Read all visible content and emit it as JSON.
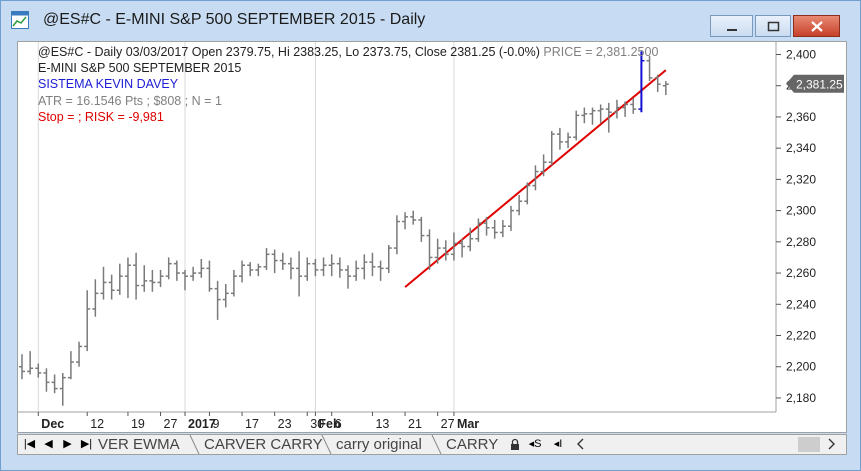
{
  "window": {
    "title": "@ES#C - E-MINI S&P 500 SEPTEMBER 2015 - Daily",
    "accent": "#c7dcf2",
    "close_color": "#c7402a"
  },
  "icons": {
    "app": "chart-app-icon",
    "minimize": "minimize-icon",
    "maximize": "maximize-icon",
    "close": "close-icon"
  },
  "header": {
    "line1_prefix": "@ES#C - Daily 03/03/2017 Open 2379.75, Hi 2383.25, Lo 2373.75, Close 2381.25 (-0.0%) ",
    "line1_price": "PRICE = 2,381.2500",
    "line2": "E-MINI S&P 500 SEPTEMBER 2015",
    "line3": "SISTEMA KEVIN DAVEY",
    "line4": "ATR = 16.1546 Pts ; $808 ; N = 1",
    "line5": "Stop =  ; RISK = -9,981",
    "colors": {
      "line1": "#222222",
      "price": "#808080",
      "line2": "#222222",
      "line3": "#1d1dd6",
      "line4": "#808080",
      "line5": "#e00000"
    }
  },
  "chart_data": {
    "type": "ohlc",
    "symbol": "@ES#C",
    "interval": "Daily",
    "yaxis": {
      "ticks": [
        2180,
        2200,
        2220,
        2240,
        2260,
        2280,
        2300,
        2320,
        2340,
        2360,
        2380,
        2400
      ],
      "tick_labels": [
        "2,180",
        "2,200",
        "2,220",
        "2,240",
        "2,260",
        "2,280",
        "2,300",
        "2,320",
        "2,340",
        "2,360",
        "2,380",
        "2,400"
      ],
      "ylim": [
        2171,
        2408
      ]
    },
    "xaxis": {
      "labels": [
        {
          "text": "Dec",
          "bold": true,
          "bar": 2
        },
        {
          "text": "12",
          "bar": 8
        },
        {
          "text": "19",
          "bar": 13
        },
        {
          "text": "27",
          "bar": 17
        },
        {
          "text": "2017",
          "bold": true,
          "bar": 20
        },
        {
          "text": "9",
          "bar": 23
        },
        {
          "text": "17",
          "bar": 27
        },
        {
          "text": "23",
          "bar": 31
        },
        {
          "text": "30",
          "bar": 35
        },
        {
          "text": "Feb",
          "bold": true,
          "bar": 36
        },
        {
          "text": "6",
          "bar": 38
        },
        {
          "text": "13",
          "bar": 43
        },
        {
          "text": "21",
          "bar": 47
        },
        {
          "text": "27",
          "bar": 51
        },
        {
          "text": "Mar",
          "bold": true,
          "bar": 53
        }
      ],
      "gridlines_at_bars": [
        2,
        20,
        36,
        53
      ]
    },
    "bars": [
      {
        "o": 2200,
        "h": 2208,
        "l": 2192,
        "c": 2197
      },
      {
        "o": 2197,
        "h": 2210,
        "l": 2195,
        "c": 2199
      },
      {
        "o": 2199,
        "h": 2202,
        "l": 2193,
        "c": 2196
      },
      {
        "o": 2196,
        "h": 2199,
        "l": 2184,
        "c": 2190
      },
      {
        "o": 2190,
        "h": 2195,
        "l": 2183,
        "c": 2186
      },
      {
        "o": 2186,
        "h": 2196,
        "l": 2175,
        "c": 2193
      },
      {
        "o": 2193,
        "h": 2210,
        "l": 2192,
        "c": 2203
      },
      {
        "o": 2203,
        "h": 2216,
        "l": 2200,
        "c": 2213
      },
      {
        "o": 2213,
        "h": 2249,
        "l": 2210,
        "c": 2237
      },
      {
        "o": 2237,
        "h": 2256,
        "l": 2232,
        "c": 2247
      },
      {
        "o": 2247,
        "h": 2264,
        "l": 2243,
        "c": 2254
      },
      {
        "o": 2254,
        "h": 2259,
        "l": 2243,
        "c": 2249
      },
      {
        "o": 2249,
        "h": 2266,
        "l": 2246,
        "c": 2258
      },
      {
        "o": 2258,
        "h": 2270,
        "l": 2244,
        "c": 2265
      },
      {
        "o": 2265,
        "h": 2273,
        "l": 2243,
        "c": 2252
      },
      {
        "o": 2252,
        "h": 2265,
        "l": 2248,
        "c": 2255
      },
      {
        "o": 2255,
        "h": 2262,
        "l": 2248,
        "c": 2254
      },
      {
        "o": 2254,
        "h": 2262,
        "l": 2251,
        "c": 2258
      },
      {
        "o": 2258,
        "h": 2270,
        "l": 2256,
        "c": 2266
      },
      {
        "o": 2266,
        "h": 2268,
        "l": 2255,
        "c": 2260
      },
      {
        "o": 2260,
        "h": 2262,
        "l": 2249,
        "c": 2258
      },
      {
        "o": 2258,
        "h": 2264,
        "l": 2255,
        "c": 2260
      },
      {
        "o": 2260,
        "h": 2269,
        "l": 2257,
        "c": 2263
      },
      {
        "o": 2263,
        "h": 2268,
        "l": 2248,
        "c": 2250
      },
      {
        "o": 2250,
        "h": 2255,
        "l": 2230,
        "c": 2243
      },
      {
        "o": 2243,
        "h": 2253,
        "l": 2238,
        "c": 2247
      },
      {
        "o": 2247,
        "h": 2262,
        "l": 2245,
        "c": 2258
      },
      {
        "o": 2258,
        "h": 2268,
        "l": 2254,
        "c": 2265
      },
      {
        "o": 2265,
        "h": 2267,
        "l": 2258,
        "c": 2262
      },
      {
        "o": 2262,
        "h": 2266,
        "l": 2258,
        "c": 2264
      },
      {
        "o": 2264,
        "h": 2276,
        "l": 2262,
        "c": 2272
      },
      {
        "o": 2272,
        "h": 2275,
        "l": 2260,
        "c": 2268
      },
      {
        "o": 2268,
        "h": 2273,
        "l": 2262,
        "c": 2266
      }
    ],
    "bars_continued": [
      {
        "o": 2266,
        "h": 2270,
        "l": 2256,
        "c": 2263
      },
      {
        "o": 2263,
        "h": 2274,
        "l": 2245,
        "c": 2258
      },
      {
        "o": 2258,
        "h": 2270,
        "l": 2255,
        "c": 2266
      },
      {
        "o": 2266,
        "h": 2269,
        "l": 2258,
        "c": 2262
      },
      {
        "o": 2262,
        "h": 2270,
        "l": 2258,
        "c": 2265
      },
      {
        "o": 2265,
        "h": 2272,
        "l": 2258,
        "c": 2266
      },
      {
        "o": 2266,
        "h": 2270,
        "l": 2257,
        "c": 2262
      },
      {
        "o": 2262,
        "h": 2265,
        "l": 2250,
        "c": 2258
      },
      {
        "o": 2258,
        "h": 2268,
        "l": 2255,
        "c": 2263
      },
      {
        "o": 2263,
        "h": 2272,
        "l": 2256,
        "c": 2267
      },
      {
        "o": 2267,
        "h": 2273,
        "l": 2258,
        "c": 2264
      },
      {
        "o": 2264,
        "h": 2268,
        "l": 2255,
        "c": 2263
      },
      {
        "o": 2263,
        "h": 2278,
        "l": 2260,
        "c": 2276
      },
      {
        "o": 2276,
        "h": 2297,
        "l": 2272,
        "c": 2293
      },
      {
        "o": 2293,
        "h": 2299,
        "l": 2288,
        "c": 2296
      },
      {
        "o": 2296,
        "h": 2300,
        "l": 2291,
        "c": 2294
      },
      {
        "o": 2294,
        "h": 2296,
        "l": 2280,
        "c": 2284
      },
      {
        "o": 2284,
        "h": 2288,
        "l": 2262,
        "c": 2270
      },
      {
        "o": 2270,
        "h": 2282,
        "l": 2266,
        "c": 2276
      },
      {
        "o": 2276,
        "h": 2281,
        "l": 2268,
        "c": 2272
      },
      {
        "o": 2272,
        "h": 2286,
        "l": 2268,
        "c": 2279
      },
      {
        "o": 2279,
        "h": 2282,
        "l": 2270,
        "c": 2277
      },
      {
        "o": 2277,
        "h": 2289,
        "l": 2274,
        "c": 2282
      },
      {
        "o": 2282,
        "h": 2295,
        "l": 2280,
        "c": 2292
      },
      {
        "o": 2292,
        "h": 2296,
        "l": 2284,
        "c": 2289
      },
      {
        "o": 2289,
        "h": 2294,
        "l": 2282,
        "c": 2286
      },
      {
        "o": 2286,
        "h": 2294,
        "l": 2283,
        "c": 2290
      },
      {
        "o": 2290,
        "h": 2303,
        "l": 2287,
        "c": 2300
      },
      {
        "o": 2300,
        "h": 2310,
        "l": 2297,
        "c": 2306
      },
      {
        "o": 2306,
        "h": 2318,
        "l": 2304,
        "c": 2316
      },
      {
        "o": 2316,
        "h": 2329,
        "l": 2313,
        "c": 2325
      },
      {
        "o": 2325,
        "h": 2336,
        "l": 2322,
        "c": 2331
      },
      {
        "o": 2331,
        "h": 2351,
        "l": 2329,
        "c": 2349
      },
      {
        "o": 2349,
        "h": 2353,
        "l": 2339,
        "c": 2344
      },
      {
        "o": 2344,
        "h": 2350,
        "l": 2340,
        "c": 2347
      },
      {
        "o": 2347,
        "h": 2364,
        "l": 2345,
        "c": 2361
      },
      {
        "o": 2361,
        "h": 2366,
        "l": 2356,
        "c": 2362
      },
      {
        "o": 2362,
        "h": 2366,
        "l": 2355,
        "c": 2364
      },
      {
        "o": 2364,
        "h": 2368,
        "l": 2356,
        "c": 2365
      },
      {
        "o": 2365,
        "h": 2369,
        "l": 2350,
        "c": 2363
      },
      {
        "o": 2363,
        "h": 2371,
        "l": 2359,
        "c": 2366
      },
      {
        "o": 2366,
        "h": 2370,
        "l": 2360,
        "c": 2368
      },
      {
        "o": 2368,
        "h": 2372,
        "l": 2362,
        "c": 2365
      },
      {
        "o": 2365,
        "h": 2402,
        "l": 2363,
        "c": 2396
      },
      {
        "o": 2396,
        "h": 2399,
        "l": 2383,
        "c": 2385
      },
      {
        "o": 2385,
        "h": 2387,
        "l": 2376,
        "c": 2381
      },
      {
        "o": 2380,
        "h": 2383,
        "l": 2374,
        "c": 2381
      }
    ],
    "entry_bar": {
      "index": 76,
      "color": "#1010d0",
      "high": 2402,
      "low": 2363
    },
    "trendline": {
      "from": {
        "bar": 47,
        "price": 2251
      },
      "to": {
        "bar": 79,
        "price": 2390
      },
      "color": "#e00000"
    },
    "last_price": {
      "label": "2,381.25",
      "value": 2381.25
    },
    "bar_color": "#7a7a7a"
  },
  "tabs": {
    "items": [
      {
        "label": "VER EWMA"
      },
      {
        "label": "CARVER CARRY"
      },
      {
        "label": "carry original"
      },
      {
        "label": "CARRY :"
      }
    ],
    "nav": {
      "first": "|◀",
      "prev": "◀",
      "next": "▶",
      "last": "▶|"
    },
    "tools": {
      "lock": "lock-icon",
      "sync": "◂S",
      "insert": "◂I"
    }
  }
}
